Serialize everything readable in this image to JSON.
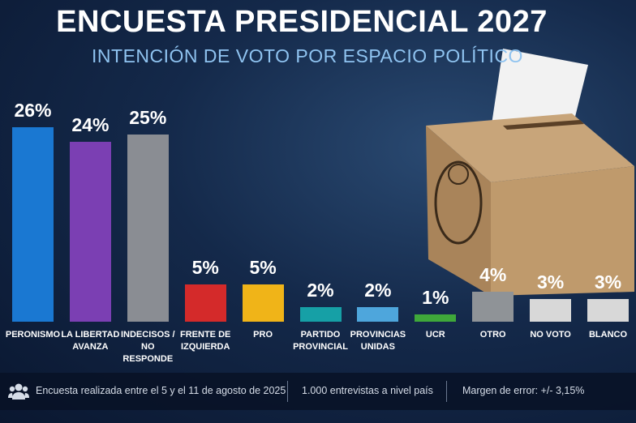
{
  "title": "ENCUESTA PRESIDENCIAL 2027",
  "subtitle": "INTENCIÓN DE VOTO POR ESPACIO POLÍTICO",
  "chart_data": {
    "type": "bar",
    "categories": [
      "PERONISMO",
      "LA LIBERTAD AVANZA",
      "INDECISOS / NO RESPONDE",
      "FRENTE DE IZQUIERDA",
      "PRO",
      "PARTIDO PROVINCIAL",
      "PROVINCIAS UNIDAS",
      "UCR",
      "OTRO",
      "NO VOTO",
      "BLANCO"
    ],
    "values": [
      26,
      24,
      25,
      5,
      5,
      2,
      2,
      1,
      4,
      3,
      3
    ],
    "value_labels": [
      "26%",
      "24%",
      "25%",
      "5%",
      "5%",
      "2%",
      "2%",
      "1%",
      "4%",
      "3%",
      "3%"
    ],
    "colors": [
      "#1a78d2",
      "#7b3fb3",
      "#8a8d93",
      "#d42a2a",
      "#f0b418",
      "#16a0a6",
      "#4ea6dc",
      "#3fa83a",
      "#8f9397",
      "#d8d8d8",
      "#d8d8d8"
    ]
  },
  "footer": [
    "Encuesta realizada entre el 5 y el 11 de agosto de 2025",
    "1.000 entrevistas a nivel país",
    "Margen de error: +/- 3,15%"
  ]
}
